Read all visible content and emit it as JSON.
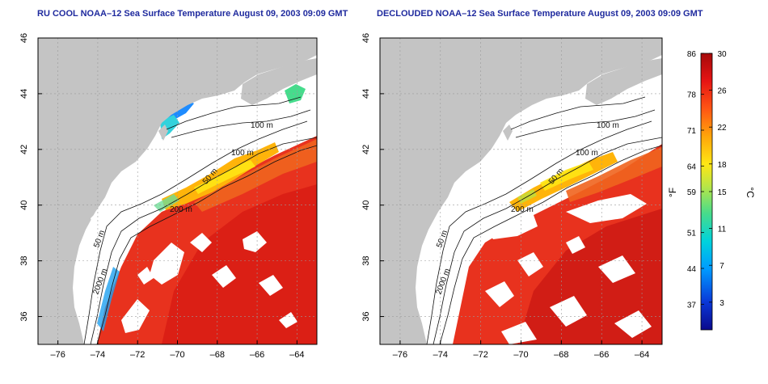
{
  "panels": [
    {
      "id": "left",
      "title": "RU COOL NOAA–12 Sea Surface Temperature August 09, 2003 09:09 GMT",
      "variant": "cloudy",
      "contour_labels": [
        "100 m",
        "100 m",
        "50 m",
        "200 m",
        "50 m",
        "2000 m"
      ]
    },
    {
      "id": "right",
      "title": "DECLOUDED NOAA–12 Sea Surface Temperature August 09, 2003 09:09 GMT",
      "variant": "declouded",
      "contour_labels": [
        "100 m",
        "100 m",
        "50 m",
        "200 m",
        "50 m",
        "2000 m"
      ]
    }
  ],
  "axes": {
    "x_ticks": [
      "–76",
      "–74",
      "–72",
      "–70",
      "–68",
      "–66",
      "–64"
    ],
    "x_values": [
      -76,
      -74,
      -72,
      -70,
      -68,
      -66,
      -64
    ],
    "y_ticks": [
      "46",
      "44",
      "42",
      "40",
      "38",
      "36"
    ],
    "y_values": [
      46,
      44,
      42,
      40,
      38,
      36
    ],
    "lon_range": [
      -77,
      -63
    ],
    "lat_range": [
      35,
      46
    ]
  },
  "colorbar": {
    "f_label": "°F",
    "c_label": "°C",
    "f_ticks": [
      "86",
      "78",
      "71",
      "64",
      "59",
      "51",
      "44",
      "37"
    ],
    "f_values": [
      86,
      78,
      71,
      64,
      59,
      51,
      44,
      37
    ],
    "c_ticks": [
      "30",
      "26",
      "22",
      "18",
      "15",
      "11",
      "7",
      "3"
    ],
    "c_values": [
      30,
      26,
      22,
      18,
      15,
      11,
      7,
      3
    ],
    "c_range": [
      0,
      30
    ]
  },
  "colors": {
    "land": "#c4c4c4",
    "no_data": "#ffffff",
    "title": "#1f2a9e",
    "contour": "#111111"
  }
}
